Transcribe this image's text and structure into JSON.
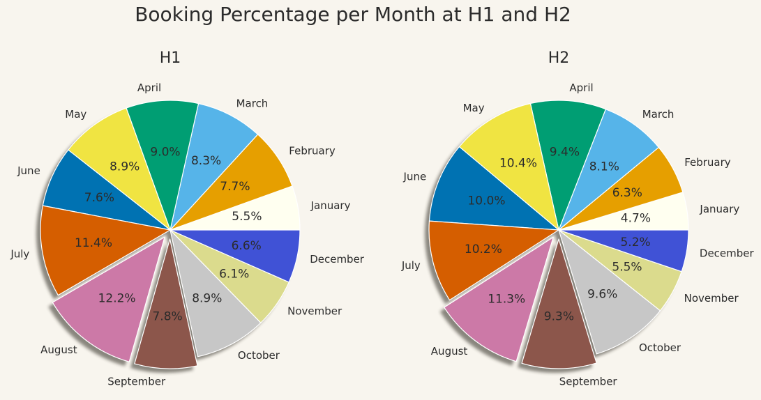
{
  "title": "Booking Percentage per Month at H1 and H2",
  "chart_data": [
    {
      "type": "pie",
      "title": "H1",
      "categories": [
        "January",
        "February",
        "March",
        "April",
        "May",
        "June",
        "July",
        "August",
        "September",
        "October",
        "November",
        "December"
      ],
      "values": [
        5.5,
        7.7,
        8.3,
        9.0,
        8.9,
        7.6,
        11.4,
        12.2,
        7.8,
        8.9,
        6.1,
        6.6
      ],
      "value_labels": [
        "5.5%",
        "7.7%",
        "8.3%",
        "9.0%",
        "8.9%",
        "7.6%",
        "11.4%",
        "12.2%",
        "7.8%",
        "8.9%",
        "6.1%",
        "6.6%"
      ],
      "exploded": [
        "August",
        "September"
      ],
      "shadow": true,
      "colors": [
        "#fffff0",
        "#e69f00",
        "#56b4e9",
        "#009e73",
        "#f0e442",
        "#0072b2",
        "#d55e00",
        "#cc79a7",
        "#8c564b",
        "#c7c7c7",
        "#dbdb8d",
        "#4052d6"
      ]
    },
    {
      "type": "pie",
      "title": "H2",
      "categories": [
        "January",
        "February",
        "March",
        "April",
        "May",
        "June",
        "July",
        "August",
        "September",
        "October",
        "November",
        "December"
      ],
      "values": [
        4.7,
        6.3,
        8.1,
        9.4,
        10.4,
        10.0,
        10.2,
        11.3,
        9.3,
        9.6,
        5.5,
        5.2
      ],
      "value_labels": [
        "4.7%",
        "6.3%",
        "8.1%",
        "9.4%",
        "10.4%",
        "10.0%",
        "10.2%",
        "11.3%",
        "9.3%",
        "9.6%",
        "5.5%",
        "5.2%"
      ],
      "exploded": [
        "August",
        "September"
      ],
      "shadow": true,
      "colors": [
        "#fffff0",
        "#e69f00",
        "#56b4e9",
        "#009e73",
        "#f0e442",
        "#0072b2",
        "#d55e00",
        "#cc79a7",
        "#8c564b",
        "#c7c7c7",
        "#dbdb8d",
        "#4052d6"
      ]
    }
  ]
}
